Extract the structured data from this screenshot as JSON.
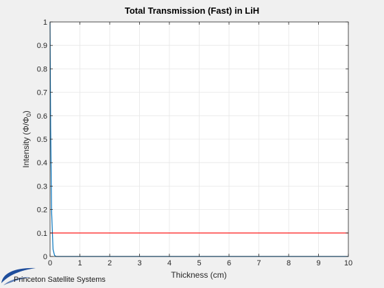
{
  "chart_data": {
    "type": "line",
    "title": "Total Transmission (Fast) in LiH",
    "xlabel": "Thickness (cm)",
    "ylabel_main": "Intensity (Φ/Φ",
    "ylabel_sub": "0",
    "ylabel_close": ")",
    "xlim": [
      0,
      10
    ],
    "ylim": [
      0,
      1
    ],
    "xticks": [
      0,
      1,
      2,
      3,
      4,
      5,
      6,
      7,
      8,
      9,
      10
    ],
    "xtick_labels": [
      "0",
      "1",
      "2",
      "3",
      "4",
      "5",
      "6",
      "7",
      "8",
      "9",
      "10"
    ],
    "yticks": [
      0,
      0.1,
      0.2,
      0.3,
      0.4,
      0.5,
      0.6,
      0.7,
      0.8,
      0.9,
      1
    ],
    "ytick_labels": [
      "0",
      "0.1",
      "0.2",
      "0.3",
      "0.4",
      "0.5",
      "0.6",
      "0.7",
      "0.8",
      "0.9",
      "1"
    ],
    "grid": true,
    "series": [
      {
        "color": "#0072bd",
        "x": [
          0,
          0.02,
          0.05,
          0.1,
          0.15,
          0.2,
          10
        ],
        "y": [
          1,
          0.55,
          0.2,
          0.03,
          0.005,
          0,
          0
        ]
      },
      {
        "color": "#ff0000",
        "x": [
          0,
          10
        ],
        "y": [
          0.1,
          0.1
        ]
      }
    ]
  },
  "logo": {
    "text": "Princeton Satellite Systems",
    "color": "#1f4e9c"
  }
}
